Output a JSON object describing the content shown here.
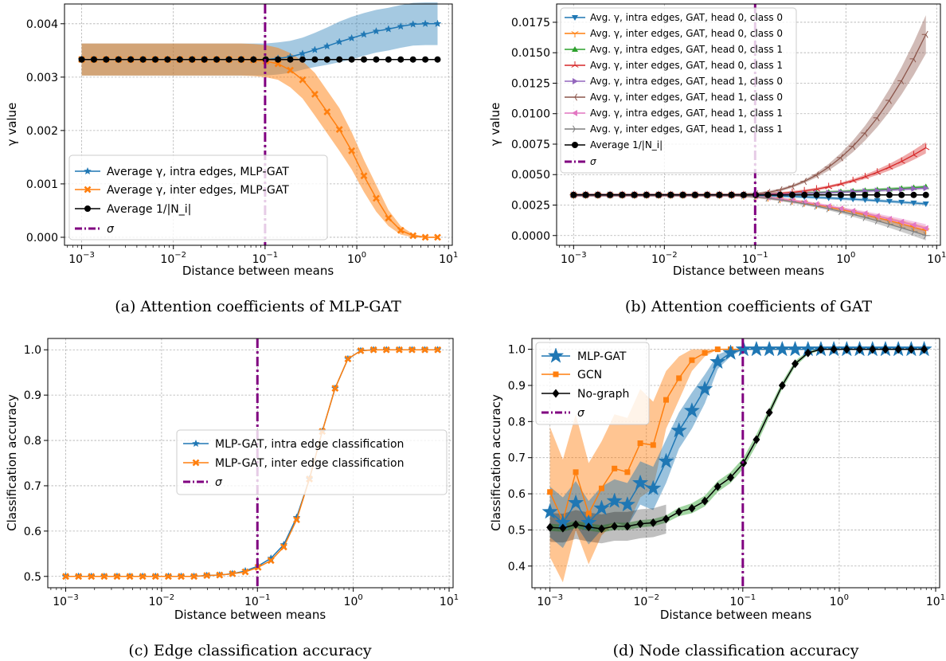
{
  "colors": {
    "blue": "#1f77b4",
    "orange": "#ff7f0e",
    "green": "#2ca02c",
    "red": "#d62728",
    "purple": "#9467bd",
    "brown": "#8c564b",
    "pink": "#e377c2",
    "gray": "#7f7f7f",
    "black": "#000000",
    "sigma": "#800080"
  },
  "chart_data": [
    {
      "id": "a",
      "type": "line",
      "caption": "(a) Attention coefficients of MLP-GAT",
      "xlabel": "Distance between means",
      "ylabel": "γ value",
      "xscale": "log",
      "xlim": [
        0.00065,
        11
      ],
      "ylim": [
        -0.00015,
        0.00437
      ],
      "yticks": [
        0,
        0.001,
        0.002,
        0.003,
        0.004
      ],
      "ytick_labels": [
        "0.000",
        "0.001",
        "0.002",
        "0.003",
        "0.004"
      ],
      "grid": true,
      "legend_position": "center-left",
      "sigma_x": 0.1,
      "x_range": [
        0.001,
        7.6
      ],
      "n_points": 30,
      "series": [
        {
          "name": "Average γ, intra edges, MLP-GAT",
          "color_key": "blue",
          "marker": "star",
          "values": [
            0.00333,
            0.00333,
            0.00333,
            0.00333,
            0.00333,
            0.00333,
            0.00333,
            0.00333,
            0.00333,
            0.00333,
            0.00333,
            0.00333,
            0.00333,
            0.00333,
            0.00333,
            0.00333,
            0.00335,
            0.00338,
            0.00344,
            0.00351,
            0.00358,
            0.00366,
            0.00373,
            0.0038,
            0.00386,
            0.0039,
            0.00395,
            0.00399,
            0.004,
            0.004
          ],
          "band": [
            0.0003,
            0.0003,
            0.0003,
            0.0003,
            0.0003,
            0.0003,
            0.0003,
            0.0003,
            0.0003,
            0.0003,
            0.0003,
            0.0003,
            0.0003,
            0.0003,
            0.0003,
            0.0003,
            0.0003,
            0.0003,
            0.0003,
            0.00032,
            0.00035,
            0.00038,
            0.0004,
            0.0004,
            0.0004,
            0.0004,
            0.0004,
            0.0004,
            0.0004,
            0.0004
          ]
        },
        {
          "name": "Average γ, inter edges, MLP-GAT",
          "color_key": "orange",
          "marker": "x",
          "values": [
            0.00333,
            0.00333,
            0.00333,
            0.00333,
            0.00333,
            0.00333,
            0.00333,
            0.00333,
            0.00333,
            0.00333,
            0.00333,
            0.00333,
            0.00333,
            0.00333,
            0.00332,
            0.0033,
            0.00325,
            0.00313,
            0.00295,
            0.00268,
            0.00235,
            0.00202,
            0.00162,
            0.00115,
            0.00073,
            0.00036,
            0.00013,
            3e-05,
            0.0,
            0.0
          ],
          "band": [
            0.0003,
            0.0003,
            0.0003,
            0.0003,
            0.0003,
            0.0003,
            0.0003,
            0.0003,
            0.0003,
            0.0003,
            0.0003,
            0.0003,
            0.0003,
            0.0003,
            0.0003,
            0.0003,
            0.0003,
            0.00032,
            0.00035,
            0.0004,
            0.0004,
            0.0004,
            0.00035,
            0.0003,
            0.00025,
            0.00015,
            8e-05,
            3e-05,
            1e-05,
            1e-05
          ]
        },
        {
          "name": "Average 1/|N_i|",
          "color_key": "black",
          "marker": "circle",
          "constant": 0.00333
        },
        {
          "name": "σ",
          "color_key": "sigma",
          "line": "dashdot"
        }
      ]
    },
    {
      "id": "b",
      "type": "line",
      "caption": "(b) Attention coefficients of GAT",
      "xlabel": "Distance between means",
      "ylabel": "γ value",
      "xscale": "log",
      "xlim": [
        0.00065,
        11
      ],
      "ylim": [
        -0.0008,
        0.019
      ],
      "yticks": [
        0,
        0.0025,
        0.005,
        0.0075,
        0.01,
        0.0125,
        0.015,
        0.0175
      ],
      "ytick_labels": [
        "0.0000",
        "0.0025",
        "0.0050",
        "0.0075",
        "0.0100",
        "0.0125",
        "0.0150",
        "0.0175"
      ],
      "grid": true,
      "legend_position": "upper-left",
      "sigma_x": 0.1,
      "x_range": [
        0.001,
        7.6
      ],
      "n_points": 30,
      "series": [
        {
          "name": "Avg. γ, intra edges, GAT, head 0, class 0",
          "color_key": "blue",
          "marker": "tri_down",
          "end": 0.0026
        },
        {
          "name": "Avg. γ, inter edges, GAT, head 0, class 0",
          "color_key": "orange",
          "marker": "tri_down_thin",
          "end": 0.0004
        },
        {
          "name": "Avg. γ, intra edges, GAT, head 0, class 1",
          "color_key": "green",
          "marker": "tri_up",
          "end": 0.004
        },
        {
          "name": "Avg. γ, inter edges, GAT, head 0, class 1",
          "color_key": "red",
          "marker": "tri_up_thin",
          "end": 0.0072
        },
        {
          "name": "Avg. γ, intra edges, GAT, head 1, class 0",
          "color_key": "purple",
          "marker": "tri_right",
          "end": 0.0039
        },
        {
          "name": "Avg. γ, inter edges, GAT, head 1, class 0",
          "color_key": "brown",
          "marker": "tri_left_thin",
          "end": 0.0165
        },
        {
          "name": "Avg. γ, intra edges, GAT, head 1, class 1",
          "color_key": "pink",
          "marker": "tri_left",
          "end": 0.0006
        },
        {
          "name": "Avg. γ, inter edges, GAT, head 1, class 1",
          "color_key": "gray",
          "marker": "tri_right_thin",
          "end": 0.0
        },
        {
          "name": "Average 1/|N_i|",
          "color_key": "black",
          "marker": "circle",
          "constant": 0.00333
        },
        {
          "name": "σ",
          "color_key": "sigma",
          "line": "dashdot"
        }
      ]
    },
    {
      "id": "c",
      "type": "line",
      "caption": "(c) Edge classification accuracy",
      "xlabel": "Distance between means",
      "ylabel": "Classification accuracy",
      "xscale": "log",
      "xlim": [
        0.00065,
        11
      ],
      "ylim": [
        0.475,
        1.025
      ],
      "yticks": [
        0.5,
        0.6,
        0.7,
        0.8,
        0.9,
        1.0
      ],
      "ytick_labels": [
        "0.5",
        "0.6",
        "0.7",
        "0.8",
        "0.9",
        "1.0"
      ],
      "grid": true,
      "legend_position": "center-right",
      "sigma_x": 0.1,
      "x_range": [
        0.001,
        7.6
      ],
      "n_points": 30,
      "series": [
        {
          "name": "MLP-GAT, intra edge classification",
          "color_key": "blue",
          "marker": "star",
          "values": [
            0.5,
            0.5,
            0.5,
            0.5,
            0.5,
            0.5,
            0.5,
            0.5,
            0.5,
            0.5,
            0.5,
            0.502,
            0.503,
            0.506,
            0.512,
            0.523,
            0.54,
            0.57,
            0.63,
            0.715,
            0.82,
            0.915,
            0.98,
            0.998,
            1.0,
            1.0,
            1.0,
            1.0,
            1.0,
            1.0
          ]
        },
        {
          "name": "MLP-GAT, inter edge classification",
          "color_key": "orange",
          "marker": "x",
          "values": [
            0.5,
            0.5,
            0.5,
            0.5,
            0.5,
            0.5,
            0.5,
            0.5,
            0.5,
            0.5,
            0.5,
            0.502,
            0.503,
            0.506,
            0.51,
            0.52,
            0.535,
            0.565,
            0.625,
            0.715,
            0.82,
            0.915,
            0.98,
            0.998,
            1.0,
            1.0,
            1.0,
            1.0,
            1.0,
            1.0
          ]
        },
        {
          "name": "σ",
          "color_key": "sigma",
          "line": "dashdot"
        }
      ]
    },
    {
      "id": "d",
      "type": "line",
      "caption": "(d) Node classification accuracy",
      "xlabel": "Distance between means",
      "ylabel": "Classification accuracy",
      "xscale": "log",
      "xlim": [
        0.00065,
        11
      ],
      "ylim": [
        0.34,
        1.03
      ],
      "yticks": [
        0.4,
        0.5,
        0.6,
        0.7,
        0.8,
        0.9,
        1.0
      ],
      "ytick_labels": [
        "0.4",
        "0.5",
        "0.6",
        "0.7",
        "0.8",
        "0.9",
        "1.0"
      ],
      "grid": true,
      "legend_position": "upper-left",
      "sigma_x": 0.1,
      "x_range": [
        0.001,
        7.6
      ],
      "n_points": 30,
      "series": [
        {
          "name": "MLP-GAT",
          "color_key": "blue",
          "marker": "big_star",
          "values": [
            0.55,
            0.52,
            0.575,
            0.52,
            0.56,
            0.58,
            0.57,
            0.63,
            0.615,
            0.69,
            0.775,
            0.83,
            0.89,
            0.965,
            0.99,
            1.0,
            1.0,
            1.0,
            1.0,
            1.0,
            1.0,
            1.0,
            1.0,
            1.0,
            1.0,
            1.0,
            1.0,
            1.0,
            1.0,
            1.0
          ],
          "band": [
            0.07,
            0.07,
            0.06,
            0.06,
            0.06,
            0.06,
            0.06,
            0.06,
            0.06,
            0.06,
            0.05,
            0.05,
            0.04,
            0.02,
            0.01,
            0,
            0,
            0,
            0,
            0,
            0,
            0,
            0,
            0,
            0,
            0,
            0,
            0,
            0,
            0
          ]
        },
        {
          "name": "GCN",
          "color_key": "orange",
          "marker": "square",
          "values": [
            0.605,
            0.525,
            0.66,
            0.545,
            0.615,
            0.67,
            0.66,
            0.74,
            0.735,
            0.86,
            0.92,
            0.97,
            0.99,
            1.0,
            1.0,
            1.0,
            1.0,
            1.0,
            1.0,
            1.0,
            1.0,
            1.0,
            1.0,
            1.0,
            1.0,
            1.0,
            1.0,
            1.0,
            1.0,
            1.0
          ],
          "band": [
            0.18,
            0.17,
            0.16,
            0.14,
            0.13,
            0.15,
            0.15,
            0.15,
            0.12,
            0.08,
            0.06,
            0.03,
            0.01,
            0,
            0,
            0,
            0,
            0,
            0,
            0,
            0,
            0,
            0,
            0,
            0,
            0,
            0,
            0,
            0,
            0
          ]
        },
        {
          "name": "No-graph",
          "color_key": "black",
          "marker": "diamond",
          "band_color_key": "green",
          "values": [
            0.507,
            0.505,
            0.515,
            0.508,
            0.503,
            0.51,
            0.51,
            0.517,
            0.52,
            0.53,
            0.55,
            0.56,
            0.58,
            0.62,
            0.645,
            0.685,
            0.75,
            0.825,
            0.9,
            0.96,
            0.99,
            1.0,
            1.0,
            1.0,
            1.0,
            1.0,
            1.0,
            1.0,
            1.0,
            1.0
          ],
          "band": [
            0.01,
            0.01,
            0.01,
            0.01,
            0.01,
            0.01,
            0.01,
            0.01,
            0.01,
            0.01,
            0.012,
            0.014,
            0.015,
            0.015,
            0.015,
            0.015,
            0.015,
            0.012,
            0.01,
            0.008,
            0.005,
            0.002,
            0,
            0,
            0,
            0,
            0,
            0,
            0,
            0
          ],
          "extra_band": {
            "color_key": "black",
            "from": 0,
            "to": 9,
            "half": 0.04
          }
        },
        {
          "name": "σ",
          "color_key": "sigma",
          "line": "dashdot"
        }
      ]
    }
  ]
}
